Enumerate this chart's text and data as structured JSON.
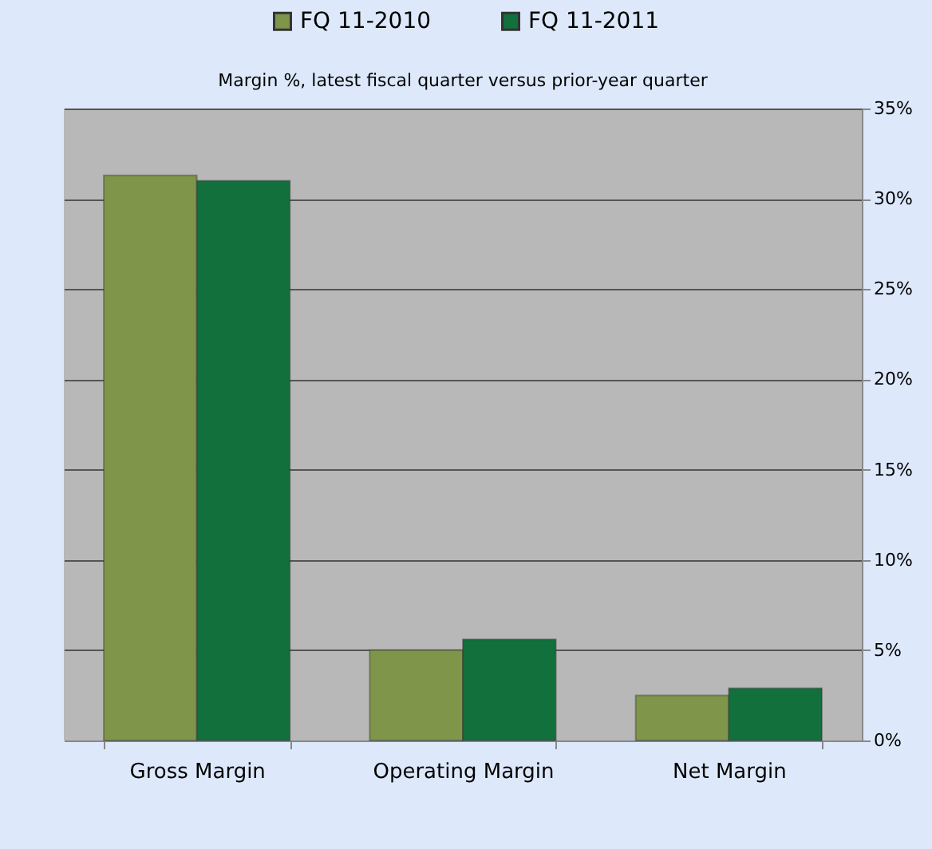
{
  "chart_data": {
    "type": "bar",
    "title": "Margin %,  latest fiscal quarter versus prior-year quarter",
    "categories": [
      "Gross Margin",
      "Operating Margin",
      "Net Margin"
    ],
    "series": [
      {
        "name": "FQ 11-2010",
        "color": "#7f964a",
        "values": [
          31.3,
          5.0,
          2.5
        ]
      },
      {
        "name": "FQ 11-2011",
        "color": "#12703c",
        "values": [
          31.0,
          5.6,
          2.9
        ]
      }
    ],
    "ylim": [
      0,
      35
    ],
    "yticks": [
      {
        "value": 0,
        "label": "0%"
      },
      {
        "value": 5,
        "label": "5%"
      },
      {
        "value": 10,
        "label": "10%"
      },
      {
        "value": 15,
        "label": "15%"
      },
      {
        "value": 20,
        "label": "20%"
      },
      {
        "value": 25,
        "label": "25%"
      },
      {
        "value": 30,
        "label": "30%"
      },
      {
        "value": 35,
        "label": "35%"
      }
    ],
    "grid": "y",
    "legend": "top"
  }
}
